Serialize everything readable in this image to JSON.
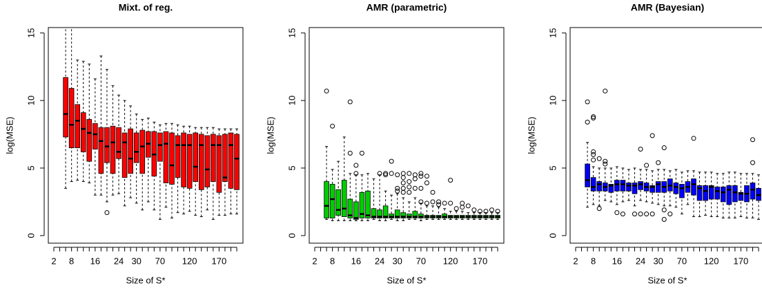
{
  "chart_data": [
    {
      "type": "boxplot",
      "title": "Mixt. of reg.",
      "xlabel": "Size of S*",
      "ylabel": "log(MSE)",
      "color": "#ff0000",
      "categories": [
        "2",
        null,
        null,
        "8",
        null,
        null,
        null,
        "16",
        null,
        null,
        null,
        "24",
        null,
        null,
        "30",
        null,
        null,
        null,
        "70",
        null,
        null,
        null,
        null,
        "120",
        null,
        null,
        null,
        null,
        "170",
        null,
        null,
        null
      ],
      "ylim": [
        -0.56,
        15.4
      ],
      "yticks": [
        0,
        5,
        10,
        15
      ],
      "min": [
        null,
        null,
        3.5,
        4.0,
        4.1,
        4.0,
        3.9,
        3.0,
        3.0,
        2.5,
        3.0,
        3.1,
        2.2,
        2.8,
        2.4,
        1.9,
        2.5,
        1.9,
        1.2,
        2.1,
        1.3,
        1.7,
        1.6,
        1.8,
        1.5,
        1.4,
        1.9,
        1.2,
        1.5,
        1.5,
        1.6,
        1.6
      ],
      "q1": [
        null,
        null,
        7.3,
        6.5,
        6.5,
        6.2,
        5.5,
        6.4,
        4.6,
        5.4,
        4.6,
        5.7,
        4.3,
        4.6,
        5.4,
        4.6,
        5.8,
        4.4,
        5.5,
        3.9,
        3.8,
        4.3,
        3.6,
        3.5,
        4.0,
        3.4,
        3.6,
        4.0,
        3.2,
        4.0,
        3.5,
        3.4
      ],
      "median": [
        null,
        null,
        9.0,
        8.2,
        8.5,
        7.9,
        7.6,
        7.5,
        7.0,
        6.6,
        6.9,
        6.2,
        6.9,
        5.7,
        6.2,
        6.6,
        6.8,
        6.0,
        6.7,
        6.8,
        5.2,
        6.7,
        6.7,
        6.7,
        5.1,
        6.7,
        4.9,
        6.7,
        6.7,
        4.3,
        6.7,
        5.7
      ],
      "q3": [
        null,
        null,
        11.7,
        10.9,
        9.7,
        9.1,
        8.6,
        8.3,
        8.0,
        8.0,
        8.1,
        8.0,
        7.6,
        7.9,
        7.6,
        7.8,
        7.7,
        7.7,
        7.6,
        7.7,
        7.6,
        7.4,
        7.6,
        7.5,
        7.6,
        7.5,
        7.4,
        7.5,
        7.4,
        7.5,
        7.6,
        7.5
      ],
      "max": [
        null,
        null,
        16.5,
        16.5,
        13.0,
        12.9,
        12.7,
        11.6,
        13.3,
        12.3,
        11.1,
        10.4,
        10.0,
        9.6,
        9.0,
        8.6,
        8.7,
        8.4,
        8.2,
        8.3,
        8.3,
        8.2,
        8.1,
        8.1,
        8.0,
        8.0,
        8.0,
        8.0,
        7.9,
        7.9,
        7.9,
        7.9
      ],
      "outliers": [
        [],
        [],
        [],
        [],
        [],
        [],
        [],
        [],
        [],
        [
          1.7
        ],
        [],
        [],
        [],
        [],
        [],
        [],
        [],
        [],
        [],
        [],
        [],
        [],
        [],
        [],
        [],
        [],
        [],
        [],
        [],
        [],
        [],
        []
      ]
    },
    {
      "type": "boxplot",
      "title": "AMR (parametric)",
      "xlabel": "Size of S*",
      "ylabel": "log(MSE)",
      "color": "#00cd00",
      "categories": [
        "2",
        null,
        null,
        "8",
        null,
        null,
        null,
        "16",
        null,
        null,
        null,
        "24",
        null,
        null,
        "30",
        null,
        null,
        null,
        "70",
        null,
        null,
        null,
        null,
        "120",
        null,
        null,
        null,
        null,
        "170",
        null,
        null,
        null
      ],
      "ylim": [
        -0.56,
        15.4
      ],
      "yticks": [
        0,
        5,
        10,
        15
      ],
      "min": [
        null,
        null,
        1.2,
        1.1,
        1.1,
        1.1,
        1.1,
        1.1,
        1.1,
        1.1,
        1.2,
        1.1,
        1.1,
        1.2,
        1.1,
        1.1,
        1.2,
        1.2,
        1.1,
        1.2,
        1.2,
        1.2,
        1.2,
        1.2,
        1.2,
        1.2,
        1.2,
        1.2,
        1.2,
        1.2,
        1.2,
        1.2
      ],
      "q1": [
        null,
        null,
        1.3,
        1.3,
        1.5,
        1.4,
        1.3,
        1.2,
        1.3,
        1.3,
        1.3,
        1.3,
        1.3,
        1.3,
        1.3,
        1.3,
        1.3,
        1.3,
        1.3,
        1.3,
        1.3,
        1.3,
        1.3,
        1.3,
        1.3,
        1.3,
        1.3,
        1.3,
        1.3,
        1.3,
        1.3,
        1.3
      ],
      "median": [
        null,
        null,
        2.2,
        2.7,
        1.9,
        2.0,
        1.5,
        1.3,
        1.6,
        1.5,
        1.4,
        1.4,
        1.4,
        1.4,
        1.4,
        1.4,
        1.4,
        1.4,
        1.4,
        1.4,
        1.4,
        1.4,
        1.4,
        1.4,
        1.4,
        1.4,
        1.4,
        1.4,
        1.4,
        1.4,
        1.4,
        1.4
      ],
      "q3": [
        null,
        null,
        4.0,
        3.8,
        3.4,
        4.1,
        2.7,
        2.5,
        3.2,
        3.3,
        2.0,
        1.9,
        2.2,
        1.6,
        1.9,
        1.7,
        1.6,
        1.8,
        1.6,
        1.5,
        1.5,
        1.5,
        1.6,
        1.5,
        1.5,
        1.5,
        1.5,
        1.5,
        1.5,
        1.5,
        1.5,
        1.5
      ],
      "max": [
        null,
        null,
        6.6,
        4.9,
        5.5,
        7.3,
        4.6,
        4.5,
        4.5,
        4.6,
        4.2,
        4.5,
        3.3,
        3.0,
        3.1,
        2.8,
        2.5,
        2.8,
        2.4,
        2.2,
        2.2,
        2.1,
        2.0,
        1.8,
        1.8,
        1.8,
        1.7,
        1.7,
        1.7,
        1.7,
        1.7,
        1.7
      ],
      "outliers": [
        [],
        [],
        [
          10.7
        ],
        [
          8.1
        ],
        [],
        [],
        [
          9.9,
          6.1
        ],
        [
          5.2,
          4.6
        ],
        [
          6.1
        ],
        [],
        [],
        [
          4.6
        ],
        [
          4.6,
          4.5
        ],
        [
          5.5,
          4.6
        ],
        [
          4.5,
          3.5,
          3.3
        ],
        [
          4.6,
          4.3,
          3.9,
          3.5,
          3.2
        ],
        [
          4.6,
          4.0,
          3.6,
          3.2
        ],
        [
          4.5,
          4.2,
          3.5
        ],
        [
          4.6,
          4.4,
          3.5,
          2.5
        ],
        [
          4.4,
          3.9,
          2.4
        ],
        [
          3.2,
          2.5
        ],
        [
          2.5,
          2.3
        ],
        [
          2.4
        ],
        [
          4.1,
          2.4
        ],
        [
          2.0
        ],
        [
          2.4,
          2.1
        ],
        [
          2.2
        ],
        [
          1.9
        ],
        [
          1.8
        ],
        [
          1.8
        ],
        [
          1.9
        ],
        [
          1.8
        ]
      ]
    },
    {
      "type": "boxplot",
      "title": "AMR (Bayesian)",
      "xlabel": "Size of S*",
      "ylabel": "log(MSE)",
      "color": "#0000ff",
      "categories": [
        "2",
        null,
        null,
        "8",
        null,
        null,
        null,
        "16",
        null,
        null,
        null,
        "24",
        null,
        null,
        "30",
        null,
        null,
        null,
        "70",
        null,
        null,
        null,
        null,
        "120",
        null,
        null,
        null,
        null,
        "170",
        null,
        null,
        null
      ],
      "ylim": [
        -0.56,
        15.4
      ],
      "yticks": [
        0,
        5,
        10,
        15
      ],
      "min": [
        null,
        null,
        2.1,
        2.3,
        2.2,
        2.6,
        2.5,
        2.3,
        2.5,
        2.6,
        2.2,
        2.6,
        2.5,
        2.4,
        2.3,
        2.2,
        2.2,
        2.1,
        1.6,
        2.3,
        1.4,
        1.4,
        1.5,
        1.4,
        1.4,
        1.3,
        1.3,
        1.3,
        1.4,
        1.3,
        1.3,
        1.2
      ],
      "q1": [
        null,
        null,
        3.6,
        3.3,
        3.3,
        3.3,
        3.2,
        3.3,
        3.3,
        3.3,
        3.1,
        3.4,
        3.3,
        3.2,
        3.2,
        3.2,
        3.3,
        3.1,
        2.8,
        3.2,
        3.0,
        2.6,
        2.6,
        2.7,
        2.7,
        2.5,
        2.3,
        2.5,
        2.6,
        2.5,
        2.7,
        2.6
      ],
      "median": [
        null,
        null,
        4.1,
        3.6,
        3.8,
        3.6,
        3.7,
        3.8,
        3.8,
        3.7,
        3.7,
        3.8,
        3.6,
        3.6,
        3.8,
        3.6,
        3.7,
        3.6,
        3.5,
        3.6,
        3.8,
        3.5,
        3.3,
        3.6,
        3.3,
        3.2,
        3.4,
        3.2,
        3.1,
        3.1,
        3.4,
        3.0
      ],
      "q3": [
        null,
        null,
        5.3,
        4.3,
        4.0,
        3.9,
        3.8,
        4.1,
        4.1,
        3.9,
        3.9,
        4.0,
        3.9,
        3.7,
        4.0,
        4.0,
        4.2,
        3.9,
        3.8,
        4.0,
        4.2,
        3.7,
        3.7,
        3.7,
        3.6,
        3.6,
        3.7,
        3.7,
        3.2,
        3.7,
        3.9,
        3.5
      ],
      "max": [
        null,
        null,
        6.9,
        5.1,
        5.0,
        5.0,
        5.0,
        5.1,
        5.0,
        4.9,
        5.0,
        4.9,
        4.9,
        4.8,
        4.9,
        4.9,
        4.8,
        4.9,
        4.7,
        4.8,
        4.8,
        4.7,
        4.7,
        4.7,
        4.6,
        4.6,
        4.7,
        4.7,
        4.6,
        4.6,
        4.6,
        4.5
      ],
      "outliers": [
        [],
        [],
        [
          9.9,
          8.4
        ],
        [
          8.8,
          8.7,
          6.2,
          6.0,
          5.6
        ],
        [
          5.7,
          2.0
        ],
        [
          10.7,
          5.5,
          5.3
        ],
        [],
        [
          1.7
        ],
        [
          1.6
        ],
        [],
        [
          1.6
        ],
        [
          6.4,
          1.6
        ],
        [
          5.2,
          1.6
        ],
        [
          7.4,
          1.6
        ],
        [
          5.4
        ],
        [
          6.5,
          1.9,
          1.2
        ],
        [
          1.6
        ],
        [],
        [],
        [],
        [
          7.2
        ],
        [],
        [],
        [],
        [],
        [],
        [],
        [],
        [],
        [],
        [
          7.1,
          5.4
        ],
        []
      ]
    }
  ]
}
